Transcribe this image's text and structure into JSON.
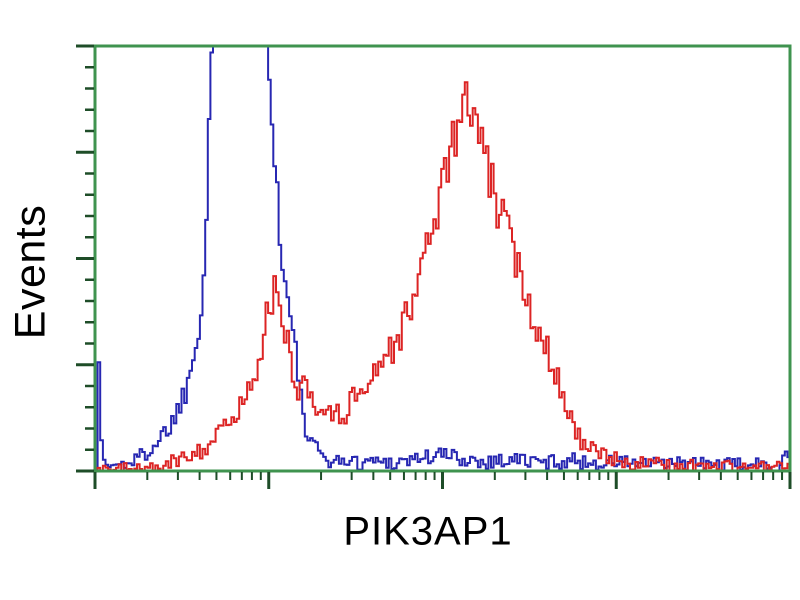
{
  "figure": {
    "ylabel": "Events",
    "xlabel": "PIK3AP1"
  },
  "chart_data": {
    "type": "line",
    "subtype": "flow_cytometry_histogram_overlay",
    "title": "",
    "xlabel": "PIK3AP1",
    "ylabel": "Events",
    "grid": false,
    "legend": false,
    "background": "#ffffff",
    "x_axis": {
      "scale": "log",
      "decades": 4,
      "tick_labels_visible": false
    },
    "y_axis": {
      "scale": "linear",
      "major_divisions": 4,
      "minor_per_major": 5,
      "tick_labels_visible": false
    },
    "colors": {
      "frame": "#3f934f",
      "ticks": "#1e4d28",
      "blue_series": "#2727b2",
      "red_series": "#dc2424",
      "text": "#000000"
    },
    "noise": {
      "seed": 1337,
      "base_amp": 0.01,
      "sqrt_amp": 0.055
    },
    "series": [
      {
        "name": "blue",
        "color_key": "blue_series",
        "clipped_at_top": true,
        "points": [
          [
            0.0,
            0.005
          ],
          [
            0.0015,
            0.28
          ],
          [
            0.0045,
            0.28
          ],
          [
            0.008,
            0.025
          ],
          [
            0.02,
            0.012
          ],
          [
            0.035,
            0.015
          ],
          [
            0.05,
            0.022
          ],
          [
            0.065,
            0.035
          ],
          [
            0.079,
            0.055
          ],
          [
            0.0935,
            0.08
          ],
          [
            0.108,
            0.115
          ],
          [
            0.1194,
            0.15
          ],
          [
            0.128,
            0.19
          ],
          [
            0.1338,
            0.225
          ],
          [
            0.141,
            0.28
          ],
          [
            0.1453,
            0.33
          ],
          [
            0.1511,
            0.4
          ],
          [
            0.1554,
            0.5
          ],
          [
            0.1583,
            0.6
          ],
          [
            0.1612,
            0.74
          ],
          [
            0.164,
            0.95
          ],
          [
            0.1683,
            1.08
          ],
          [
            0.18,
            1.14
          ],
          [
            0.2,
            1.18
          ],
          [
            0.22,
            1.13
          ],
          [
            0.24,
            1.06
          ],
          [
            0.249,
            0.98
          ],
          [
            0.2545,
            0.8
          ],
          [
            0.2605,
            0.64
          ],
          [
            0.266,
            0.52
          ],
          [
            0.272,
            0.44
          ],
          [
            0.278,
            0.37
          ],
          [
            0.284,
            0.3
          ],
          [
            0.29,
            0.25
          ],
          [
            0.295,
            0.155
          ],
          [
            0.302,
            0.09
          ],
          [
            0.309,
            0.065
          ],
          [
            0.318,
            0.045
          ],
          [
            0.33,
            0.032
          ],
          [
            0.345,
            0.02
          ],
          [
            0.36,
            0.028
          ],
          [
            0.375,
            0.018
          ],
          [
            0.4,
            0.025
          ],
          [
            0.43,
            0.02
          ],
          [
            0.46,
            0.03
          ],
          [
            0.5,
            0.038
          ],
          [
            0.53,
            0.028
          ],
          [
            0.56,
            0.022
          ],
          [
            0.6,
            0.028
          ],
          [
            0.64,
            0.02
          ],
          [
            0.68,
            0.025
          ],
          [
            0.72,
            0.018
          ],
          [
            0.76,
            0.022
          ],
          [
            0.8,
            0.015
          ],
          [
            0.85,
            0.018
          ],
          [
            0.9,
            0.014
          ],
          [
            0.95,
            0.014
          ],
          [
            0.985,
            0.012
          ],
          [
            0.992,
            0.05
          ],
          [
            0.997,
            0.04
          ],
          [
            1.0,
            0.008
          ]
        ]
      },
      {
        "name": "red",
        "color_key": "red_series",
        "clipped_at_top": false,
        "points": [
          [
            0.0216,
            0.004
          ],
          [
            0.0647,
            0.006
          ],
          [
            0.1007,
            0.012
          ],
          [
            0.1223,
            0.03
          ],
          [
            0.1367,
            0.045
          ],
          [
            0.1511,
            0.05
          ],
          [
            0.1655,
            0.07
          ],
          [
            0.1799,
            0.09
          ],
          [
            0.1942,
            0.12
          ],
          [
            0.2086,
            0.155
          ],
          [
            0.2201,
            0.19
          ],
          [
            0.2302,
            0.25
          ],
          [
            0.2374,
            0.3
          ],
          [
            0.2446,
            0.35
          ],
          [
            0.2518,
            0.4
          ],
          [
            0.2576,
            0.42
          ],
          [
            0.2633,
            0.38
          ],
          [
            0.2705,
            0.33
          ],
          [
            0.2777,
            0.28
          ],
          [
            0.2849,
            0.23
          ],
          [
            0.2921,
            0.19
          ],
          [
            0.3022,
            0.21
          ],
          [
            0.3094,
            0.17
          ],
          [
            0.318,
            0.13
          ],
          [
            0.3266,
            0.16
          ],
          [
            0.3353,
            0.13
          ],
          [
            0.3453,
            0.155
          ],
          [
            0.3554,
            0.13
          ],
          [
            0.3669,
            0.16
          ],
          [
            0.3784,
            0.19
          ],
          [
            0.3899,
            0.21
          ],
          [
            0.4014,
            0.24
          ],
          [
            0.4129,
            0.26
          ],
          [
            0.4245,
            0.29
          ],
          [
            0.436,
            0.31
          ],
          [
            0.4475,
            0.37
          ],
          [
            0.459,
            0.42
          ],
          [
            0.4705,
            0.49
          ],
          [
            0.482,
            0.57
          ],
          [
            0.4935,
            0.64
          ],
          [
            0.505,
            0.72
          ],
          [
            0.5151,
            0.78
          ],
          [
            0.5237,
            0.83
          ],
          [
            0.5324,
            0.88
          ],
          [
            0.5396,
            0.84
          ],
          [
            0.5482,
            0.8
          ],
          [
            0.5568,
            0.74
          ],
          [
            0.5655,
            0.7
          ],
          [
            0.5741,
            0.64
          ],
          [
            0.5827,
            0.6
          ],
          [
            0.5942,
            0.55
          ],
          [
            0.6043,
            0.49
          ],
          [
            0.6144,
            0.44
          ],
          [
            0.6259,
            0.38
          ],
          [
            0.6374,
            0.33
          ],
          [
            0.6489,
            0.29
          ],
          [
            0.6604,
            0.24
          ],
          [
            0.6719,
            0.18
          ],
          [
            0.6835,
            0.12
          ],
          [
            0.695,
            0.08
          ],
          [
            0.7065,
            0.055
          ],
          [
            0.7194,
            0.04
          ],
          [
            0.741,
            0.028
          ],
          [
            0.7698,
            0.02
          ],
          [
            0.8129,
            0.014
          ],
          [
            0.8705,
            0.012
          ],
          [
            0.9424,
            0.01
          ],
          [
            0.99,
            0.008
          ],
          [
            1.0,
            0.006
          ]
        ]
      }
    ]
  }
}
